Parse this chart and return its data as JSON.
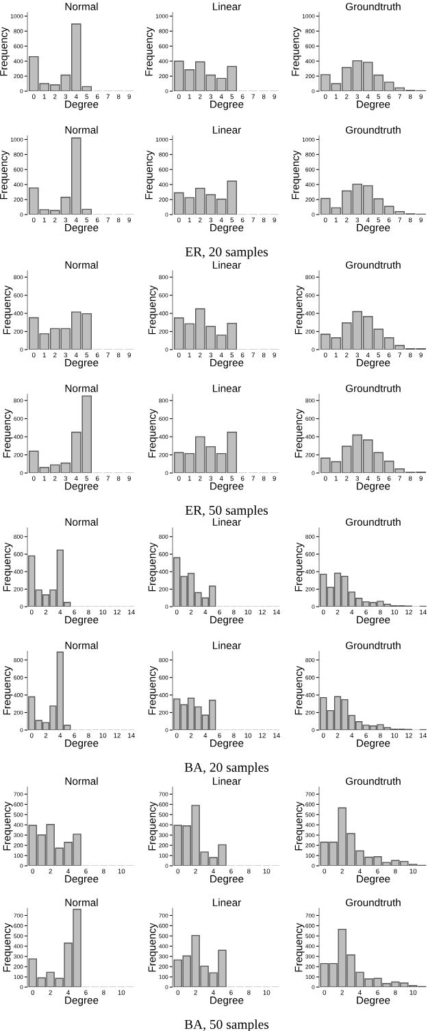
{
  "chart_data": [
    {
      "type": "bar",
      "title": "Normal",
      "xlabel": "Degree",
      "ylabel": "Frequency",
      "categories": [
        "0",
        "1",
        "2",
        "3",
        "4",
        "5",
        "6",
        "7",
        "8",
        "9"
      ],
      "values": [
        460,
        100,
        85,
        215,
        895,
        60,
        0,
        0,
        0,
        0
      ],
      "color": "#bebebe",
      "ylim": [
        0,
        1050
      ],
      "yticks": [
        0,
        200,
        400,
        600,
        800,
        1000
      ],
      "grid": false
    },
    {
      "type": "bar",
      "title": "Linear",
      "xlabel": "Degree",
      "ylabel": "Frequency",
      "categories": [
        "0",
        "1",
        "2",
        "3",
        "4",
        "5",
        "6",
        "7",
        "8",
        "9"
      ],
      "values": [
        400,
        285,
        390,
        215,
        170,
        330,
        0,
        0,
        0,
        0
      ],
      "color": "#bebebe",
      "ylim": [
        0,
        1050
      ],
      "yticks": [
        0,
        200,
        400,
        600,
        800,
        1000
      ],
      "grid": false
    },
    {
      "type": "bar",
      "title": "Groundtruth",
      "xlabel": "Degree",
      "ylabel": "Frequency",
      "categories": [
        "0",
        "1",
        "2",
        "3",
        "4",
        "5",
        "6",
        "7",
        "8",
        "9"
      ],
      "values": [
        220,
        100,
        315,
        405,
        385,
        215,
        120,
        45,
        10,
        5
      ],
      "color": "#bebebe",
      "ylim": [
        0,
        1050
      ],
      "yticks": [
        0,
        200,
        400,
        600,
        800,
        1000
      ],
      "grid": false
    },
    {
      "type": "bar",
      "title": "Normal",
      "xlabel": "Degree",
      "ylabel": "Frequency",
      "categories": [
        "0",
        "1",
        "2",
        "3",
        "4",
        "5",
        "6",
        "7",
        "8",
        "9"
      ],
      "values": [
        355,
        65,
        55,
        230,
        1020,
        70,
        0,
        0,
        0,
        0
      ],
      "color": "#bebebe",
      "ylim": [
        0,
        1050
      ],
      "yticks": [
        0,
        200,
        400,
        600,
        800,
        1000
      ],
      "grid": false
    },
    {
      "type": "bar",
      "title": "Linear",
      "xlabel": "Degree",
      "ylabel": "Frequency",
      "categories": [
        "0",
        "1",
        "2",
        "3",
        "4",
        "5",
        "6",
        "7",
        "8",
        "9"
      ],
      "values": [
        290,
        225,
        350,
        265,
        205,
        445,
        0,
        0,
        0,
        0
      ],
      "color": "#bebebe",
      "ylim": [
        0,
        1050
      ],
      "yticks": [
        0,
        200,
        400,
        600,
        800,
        1000
      ],
      "grid": false,
      "annotations": [
        "ER, 20 samples"
      ]
    },
    {
      "type": "bar",
      "title": "Groundtruth",
      "xlabel": "Degree",
      "ylabel": "Frequency",
      "categories": [
        "0",
        "1",
        "2",
        "3",
        "4",
        "5",
        "6",
        "7",
        "8",
        "9"
      ],
      "values": [
        215,
        90,
        315,
        405,
        385,
        210,
        110,
        40,
        10,
        5
      ],
      "color": "#bebebe",
      "ylim": [
        0,
        1050
      ],
      "yticks": [
        0,
        200,
        400,
        600,
        800,
        1000
      ],
      "grid": false
    },
    {
      "type": "bar",
      "title": "Normal",
      "xlabel": "Degree",
      "ylabel": "Frequency",
      "categories": [
        "0",
        "1",
        "2",
        "3",
        "4",
        "5",
        "6",
        "7",
        "8",
        "9"
      ],
      "values": [
        352,
        175,
        232,
        232,
        415,
        396,
        0,
        0,
        0,
        0
      ],
      "color": "#bebebe",
      "ylim": [
        0,
        870
      ],
      "yticks": [
        0,
        200,
        400,
        600,
        800
      ],
      "grid": false
    },
    {
      "type": "bar",
      "title": "Linear",
      "xlabel": "Degree",
      "ylabel": "Frequency",
      "categories": [
        "0",
        "1",
        "2",
        "3",
        "4",
        "5",
        "6",
        "7",
        "8",
        "9"
      ],
      "values": [
        350,
        285,
        450,
        255,
        160,
        290,
        0,
        0,
        0,
        0
      ],
      "color": "#bebebe",
      "ylim": [
        0,
        870
      ],
      "yticks": [
        0,
        200,
        400,
        600,
        800
      ],
      "grid": false
    },
    {
      "type": "bar",
      "title": "Groundtruth",
      "xlabel": "Degree",
      "ylabel": "Frequency",
      "categories": [
        "0",
        "1",
        "2",
        "3",
        "4",
        "5",
        "6",
        "7",
        "8",
        "9"
      ],
      "values": [
        170,
        130,
        295,
        420,
        365,
        225,
        130,
        45,
        10,
        10
      ],
      "color": "#bebebe",
      "ylim": [
        0,
        870
      ],
      "yticks": [
        0,
        200,
        400,
        600,
        800
      ],
      "grid": false
    },
    {
      "type": "bar",
      "title": "Normal",
      "xlabel": "Degree",
      "ylabel": "Frequency",
      "categories": [
        "0",
        "1",
        "2",
        "3",
        "4",
        "5",
        "6",
        "7",
        "8",
        "9"
      ],
      "values": [
        240,
        60,
        90,
        110,
        450,
        850,
        0,
        0,
        0,
        0
      ],
      "color": "#bebebe",
      "ylim": [
        0,
        870
      ],
      "yticks": [
        0,
        200,
        400,
        600,
        800
      ],
      "grid": false
    },
    {
      "type": "bar",
      "title": "Linear",
      "xlabel": "Degree",
      "ylabel": "Frequency",
      "categories": [
        "0",
        "1",
        "2",
        "3",
        "4",
        "5",
        "6",
        "7",
        "8",
        "9"
      ],
      "values": [
        225,
        215,
        400,
        290,
        215,
        450,
        0,
        0,
        0,
        0
      ],
      "color": "#bebebe",
      "ylim": [
        0,
        870
      ],
      "yticks": [
        0,
        200,
        400,
        600,
        800
      ],
      "grid": false,
      "annotations": [
        "ER, 50 samples"
      ]
    },
    {
      "type": "bar",
      "title": "Groundtruth",
      "xlabel": "Degree",
      "ylabel": "Frequency",
      "categories": [
        "0",
        "1",
        "2",
        "3",
        "4",
        "5",
        "6",
        "7",
        "8",
        "9"
      ],
      "values": [
        165,
        125,
        295,
        420,
        365,
        225,
        130,
        45,
        8,
        10
      ],
      "color": "#bebebe",
      "ylim": [
        0,
        870
      ],
      "yticks": [
        0,
        200,
        400,
        600,
        800
      ],
      "grid": false
    },
    {
      "type": "bar",
      "title": "Normal",
      "xlabel": "Degree",
      "ylabel": "Frequency",
      "categories": [
        "0",
        null,
        "2",
        null,
        "4",
        null,
        "6",
        null,
        "8",
        null,
        "10",
        null,
        "12",
        null,
        "14"
      ],
      "values": [
        580,
        191,
        135,
        191,
        647,
        49,
        0,
        0,
        0,
        0,
        0,
        0,
        0,
        0,
        0
      ],
      "color": "#bebebe",
      "ylim": [
        0,
        900
      ],
      "yticks": [
        0,
        200,
        400,
        600,
        800
      ],
      "grid": false
    },
    {
      "type": "bar",
      "title": "Linear",
      "xlabel": "Degree",
      "ylabel": "Frequency",
      "categories": [
        "0",
        null,
        "2",
        null,
        "4",
        null,
        "6",
        null,
        "8",
        null,
        "10",
        null,
        "12",
        null,
        "14"
      ],
      "values": [
        560,
        345,
        380,
        160,
        100,
        235,
        0,
        0,
        0,
        0,
        0,
        0,
        0,
        0,
        0
      ],
      "color": "#bebebe",
      "ylim": [
        0,
        900
      ],
      "yticks": [
        0,
        200,
        400,
        600,
        800
      ],
      "grid": false
    },
    {
      "type": "bar",
      "title": "Groundtruth",
      "xlabel": "Degree",
      "ylabel": "Frequency",
      "categories": [
        "0",
        null,
        "2",
        null,
        "4",
        null,
        "6",
        null,
        "8",
        null,
        "10",
        null,
        "12",
        null,
        "14"
      ],
      "values": [
        371,
        222,
        382,
        347,
        167,
        96,
        56,
        47,
        62,
        27,
        11,
        11,
        7,
        0,
        4
      ],
      "color": "#bebebe",
      "ylim": [
        0,
        900
      ],
      "yticks": [
        0,
        200,
        400,
        600,
        800
      ],
      "grid": false
    },
    {
      "type": "bar",
      "title": "Normal",
      "xlabel": "Degree",
      "ylabel": "Frequency",
      "categories": [
        "0",
        null,
        "2",
        null,
        "4",
        null,
        "6",
        null,
        "8",
        null,
        "10",
        null,
        "12",
        null,
        "14"
      ],
      "values": [
        380,
        110,
        85,
        275,
        890,
        55,
        0,
        0,
        0,
        0,
        0,
        0,
        0,
        0,
        0
      ],
      "color": "#bebebe",
      "ylim": [
        0,
        900
      ],
      "yticks": [
        0,
        200,
        400,
        600,
        800
      ],
      "grid": false
    },
    {
      "type": "bar",
      "title": "Linear",
      "xlabel": "Degree",
      "ylabel": "Frequency",
      "categories": [
        "0",
        null,
        "2",
        null,
        "4",
        null,
        "6",
        null,
        "8",
        null,
        "10",
        null,
        "12",
        null,
        "14"
      ],
      "values": [
        355,
        290,
        365,
        265,
        170,
        340,
        0,
        0,
        0,
        0,
        0,
        0,
        0,
        0,
        0
      ],
      "color": "#bebebe",
      "ylim": [
        0,
        900
      ],
      "yticks": [
        0,
        200,
        400,
        600,
        800
      ],
      "grid": false,
      "annotations": [
        "BA, 20 samples"
      ]
    },
    {
      "type": "bar",
      "title": "Groundtruth",
      "xlabel": "Degree",
      "ylabel": "Frequency",
      "categories": [
        "0",
        null,
        "2",
        null,
        "4",
        null,
        "6",
        null,
        "8",
        null,
        "10",
        null,
        "12",
        null,
        "14"
      ],
      "values": [
        371,
        222,
        382,
        347,
        167,
        96,
        56,
        47,
        62,
        27,
        11,
        11,
        7,
        0,
        4
      ],
      "color": "#bebebe",
      "ylim": [
        0,
        900
      ],
      "yticks": [
        0,
        200,
        400,
        600,
        800
      ],
      "grid": false
    },
    {
      "type": "bar",
      "title": "Normal",
      "xlabel": "Degree",
      "ylabel": "Frequency",
      "categories": [
        "0",
        null,
        "2",
        null,
        "4",
        null,
        "6",
        null,
        "8",
        null,
        "10",
        null
      ],
      "values": [
        395,
        301,
        403,
        172,
        229,
        309,
        0,
        0,
        0,
        0,
        0,
        0
      ],
      "color": "#bebebe",
      "ylim": [
        0,
        770
      ],
      "yticks": [
        0,
        100,
        200,
        300,
        400,
        500,
        600,
        700
      ],
      "grid": false
    },
    {
      "type": "bar",
      "title": "Linear",
      "xlabel": "Degree",
      "ylabel": "Frequency",
      "categories": [
        "0",
        null,
        "2",
        null,
        "4",
        null,
        "6",
        null,
        "8",
        null,
        "10",
        null
      ],
      "values": [
        395,
        390,
        590,
        135,
        80,
        205,
        0,
        0,
        0,
        0,
        0,
        0
      ],
      "color": "#bebebe",
      "ylim": [
        0,
        770
      ],
      "yticks": [
        0,
        100,
        200,
        300,
        400,
        500,
        600,
        700
      ],
      "grid": false
    },
    {
      "type": "bar",
      "title": "Groundtruth",
      "xlabel": "Degree",
      "ylabel": "Frequency",
      "categories": [
        "0",
        null,
        "2",
        null,
        "4",
        null,
        "6",
        null,
        "8",
        null,
        "10",
        null
      ],
      "values": [
        231,
        231,
        566,
        315,
        146,
        84,
        89,
        33,
        52,
        43,
        14,
        4
      ],
      "color": "#bebebe",
      "ylim": [
        0,
        770
      ],
      "yticks": [
        0,
        100,
        200,
        300,
        400,
        500,
        600,
        700
      ],
      "grid": false
    },
    {
      "type": "bar",
      "title": "Normal",
      "xlabel": "Degree",
      "ylabel": "Frequency",
      "categories": [
        "0",
        null,
        "2",
        null,
        "4",
        null,
        "6",
        null,
        "8",
        null,
        "10",
        null
      ],
      "values": [
        275,
        90,
        145,
        85,
        430,
        760,
        0,
        0,
        0,
        0,
        0,
        0
      ],
      "color": "#bebebe",
      "ylim": [
        0,
        770
      ],
      "yticks": [
        0,
        100,
        200,
        300,
        400,
        500,
        600,
        700
      ],
      "grid": false
    },
    {
      "type": "bar",
      "title": "Linear",
      "xlabel": "Degree",
      "ylabel": "Frequency",
      "categories": [
        "0",
        null,
        "2",
        null,
        "4",
        null,
        "6",
        null,
        "8",
        null,
        "10",
        null
      ],
      "values": [
        265,
        305,
        505,
        205,
        140,
        360,
        0,
        0,
        0,
        0,
        0,
        0
      ],
      "color": "#bebebe",
      "ylim": [
        0,
        770
      ],
      "yticks": [
        0,
        100,
        200,
        300,
        400,
        500,
        600,
        700
      ],
      "grid": false,
      "annotations": [
        "BA, 50 samples"
      ]
    },
    {
      "type": "bar",
      "title": "Groundtruth",
      "xlabel": "Degree",
      "ylabel": "Frequency",
      "categories": [
        "0",
        null,
        "2",
        null,
        "4",
        null,
        "6",
        null,
        "8",
        null,
        "10",
        null
      ],
      "values": [
        230,
        230,
        565,
        315,
        145,
        80,
        85,
        35,
        50,
        40,
        15,
        5
      ],
      "color": "#bebebe",
      "ylim": [
        0,
        770
      ],
      "yticks": [
        0,
        100,
        200,
        300,
        400,
        500,
        600,
        700
      ],
      "grid": false
    }
  ]
}
